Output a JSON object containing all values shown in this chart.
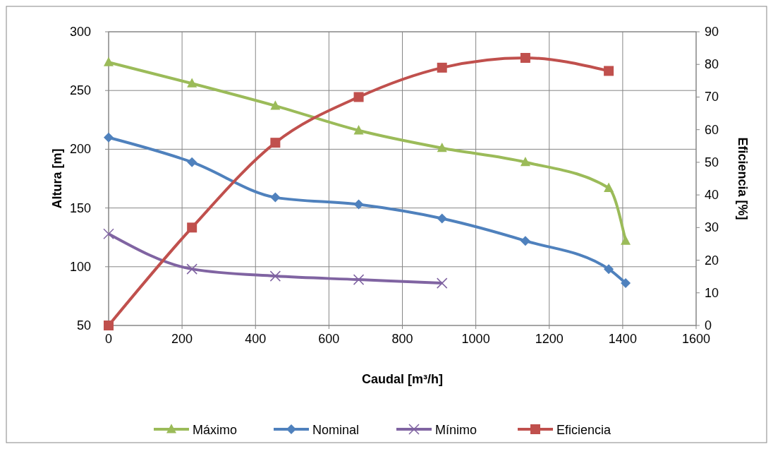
{
  "chart_data": {
    "type": "line",
    "xlabel": "Caudal [m³/h]",
    "ylabel": "Altura [m]",
    "y2label": "Eficiencia [%]",
    "xlim": [
      0,
      1600
    ],
    "xticks": [
      0,
      200,
      400,
      600,
      800,
      1000,
      1200,
      1400,
      1600
    ],
    "ylim": [
      50,
      300
    ],
    "yticks": [
      50,
      100,
      150,
      200,
      250,
      300
    ],
    "y2lim": [
      0,
      90
    ],
    "y2ticks": [
      0,
      10,
      20,
      30,
      40,
      50,
      60,
      70,
      80,
      90
    ],
    "grid": true,
    "legend": "bottom",
    "series": [
      {
        "name": "Máximo",
        "color": "#9bbb59",
        "marker": "triangle",
        "x": [
          0,
          227,
          454,
          681,
          908,
          1135,
          1362,
          1408
        ],
        "values": [
          274,
          256,
          237,
          216,
          201,
          189,
          167,
          122
        ]
      },
      {
        "name": "Nominal",
        "color": "#4f81bd",
        "marker": "diamond",
        "x": [
          0,
          227,
          454,
          681,
          908,
          1135,
          1362,
          1408
        ],
        "values": [
          210,
          189,
          159,
          153,
          141,
          122,
          98,
          86
        ]
      },
      {
        "name": "Mínimo",
        "color": "#8064a2",
        "marker": "cross",
        "x": [
          0,
          227,
          454,
          681,
          908
        ],
        "values": [
          128,
          98,
          92,
          89,
          86
        ]
      },
      {
        "name": "Eficiencia",
        "color": "#c0504d",
        "marker": "square",
        "axis": "y2",
        "x": [
          0,
          227,
          454,
          681,
          908,
          1135,
          1362
        ],
        "values": [
          0,
          30,
          56,
          70,
          79,
          82,
          78
        ]
      }
    ]
  }
}
